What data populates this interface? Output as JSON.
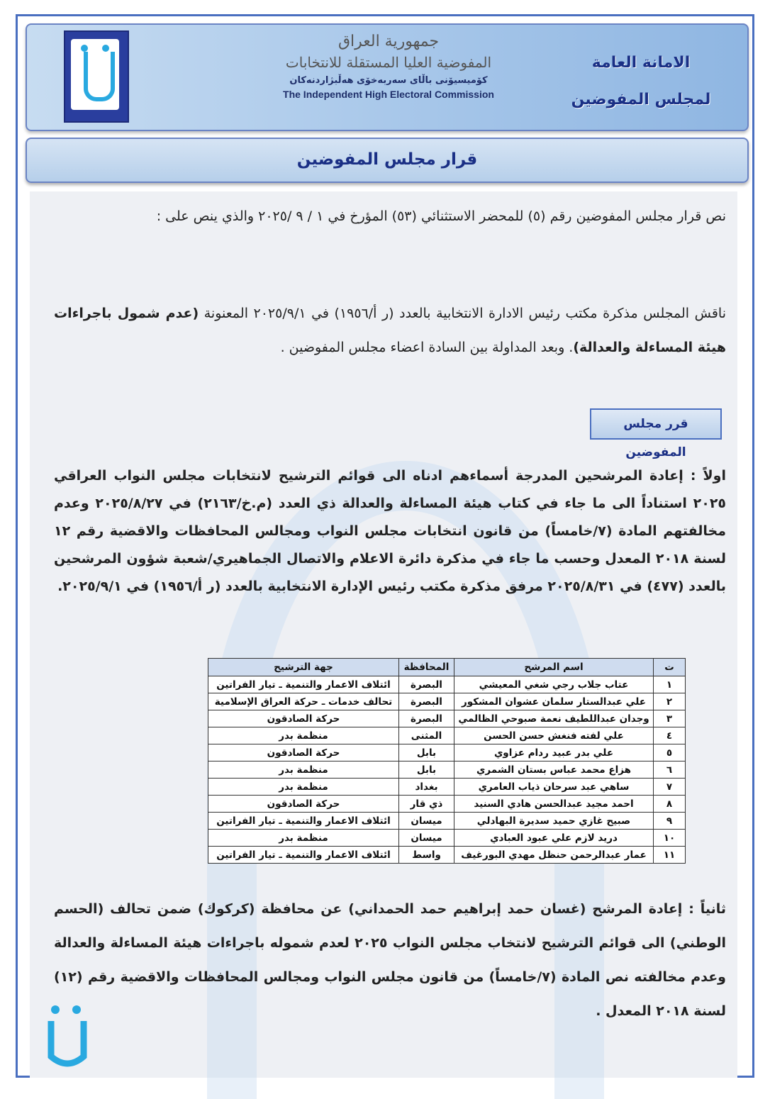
{
  "header": {
    "org_ar_line1": "جمهورية العراق",
    "org_ar_line2": "المفوضية العليا المستقلة للانتخابات",
    "org_ku": "كۆمیسیۆنی باڵای سەربەخۆی هەڵبژاردنەکان",
    "org_en": "The Independent High Electoral Commission",
    "dept_line1": "الامانة العامة",
    "dept_line2": "لمجلس المفوضين"
  },
  "title": "قرار مجلس المفوضين",
  "intro": "نص قرار مجلس المفوضين رقم (٥) للمحضر الاستثنائي (٥٣) المؤرخ في ١ / ٩ /٢٠٢٥ والذي ينص على :",
  "discussion": {
    "part1": "ناقش المجلس مذكرة مكتب رئيس الادارة الانتخابية بالعدد (ر أ/١٩٥٦) في ٢٠٢٥/٩/١ المعنونة ",
    "bold": "(عدم شمول باجراءات هيئة المساءلة والعدالة)",
    "part2": ". وبعد المداولة بين السادة اعضاء مجلس المفوضين ."
  },
  "decision_badge": "قرر مجلس المفوضين",
  "first": "اولاً : إعادة المرشحين المدرجة أسماءهم ادناه الى قوائم الترشيح لانتخابات مجلس النواب العراقي ٢٠٢٥ استناداً الى ما جاء في كتاب هيئة المساءلة والعدالة ذي العدد (م.خ/٢١٦٣) في ٢٠٢٥/٨/٢٧ وعدم مخالفتهم المادة (٧/خامساً) من قانون انتخابات مجلس النواب ومجالس المحافظات والاقضية رقم ١٢ لسنة ٢٠١٨ المعدل وحسب ما جاء في مذكرة دائرة الاعلام والاتصال الجماهيري/شعبة شؤون المرشحين بالعدد (٤٧٧) في ٢٠٢٥/٨/٣١ مرفق مذكرة مكتب رئيس الإدارة الانتخابية بالعدد (ر أ/١٩٥٦) في ٢٠٢٥/٩/١.",
  "table": {
    "headers": [
      "ت",
      "اسم المرشح",
      "المحافظة",
      "جهة الترشيح"
    ],
    "rows": [
      [
        "١",
        "عتاب جلاب رجي شغي المعيشي",
        "البصرة",
        "ائتلاف الاعمار والتنمية ـ تيار الفراتين"
      ],
      [
        "٢",
        "علي عبدالستار سلمان عشوان المشكور",
        "البصرة",
        "تحالف خدمات ـ حركة العراق الإسلامية"
      ],
      [
        "٣",
        "وجدان عبداللطيف نعمة صبوحي الظالمي",
        "البصرة",
        "حركة الصادقون"
      ],
      [
        "٤",
        "علي لفته فنغش حسن الحسن",
        "المثنى",
        "منظمة بدر"
      ],
      [
        "٥",
        "علي بدر عبيد ردام عزاوي",
        "بابل",
        "حركة الصادقون"
      ],
      [
        "٦",
        "هزاع محمد عباس بستان الشمري",
        "بابل",
        "منظمة بدر"
      ],
      [
        "٧",
        "ساهي عبد سرحان ذياب العامري",
        "بغداد",
        "منظمة بدر"
      ],
      [
        "٨",
        "احمد مجيد عبدالحسن هادي السنيد",
        "ذي قار",
        "حركة الصادقون"
      ],
      [
        "٩",
        "صبيح غازي حميد سديرة البهادلي",
        "ميسان",
        "ائتلاف الاعمار والتنمية ـ تيار الفراتين"
      ],
      [
        "١٠",
        "دريد لازم علي عبود العبادي",
        "ميسان",
        "منظمة بدر"
      ],
      [
        "١١",
        "عمار عبدالرحمن حنظل مهدي البورغيف",
        "واسط",
        "ائتلاف الاعمار والتنمية ـ تيار الفراتين"
      ]
    ]
  },
  "second": "ثانياً : إعادة المرشح (غسان حمد إبراهيم حمد الحمداني) عن محافظة (كركوك) ضمن تحالف (الحسم الوطني) الى قوائم الترشيح لانتخاب مجلس النواب ٢٠٢٥ لعدم شموله باجراءات هيئة المساءلة والعدالة وعدم مخالفته نص المادة (٧/خامساً) من قانون مجلس النواب ومجالس المحافظات والاقضية رقم (١٢) لسنة ٢٠١٨ المعدل .",
  "colors": {
    "border": "#4a6fc0",
    "title_text": "#1a2f85",
    "header_bg": "#a9c8ea",
    "logo_blue": "#2a3e9e",
    "logo_cyan": "#29a9e0"
  }
}
